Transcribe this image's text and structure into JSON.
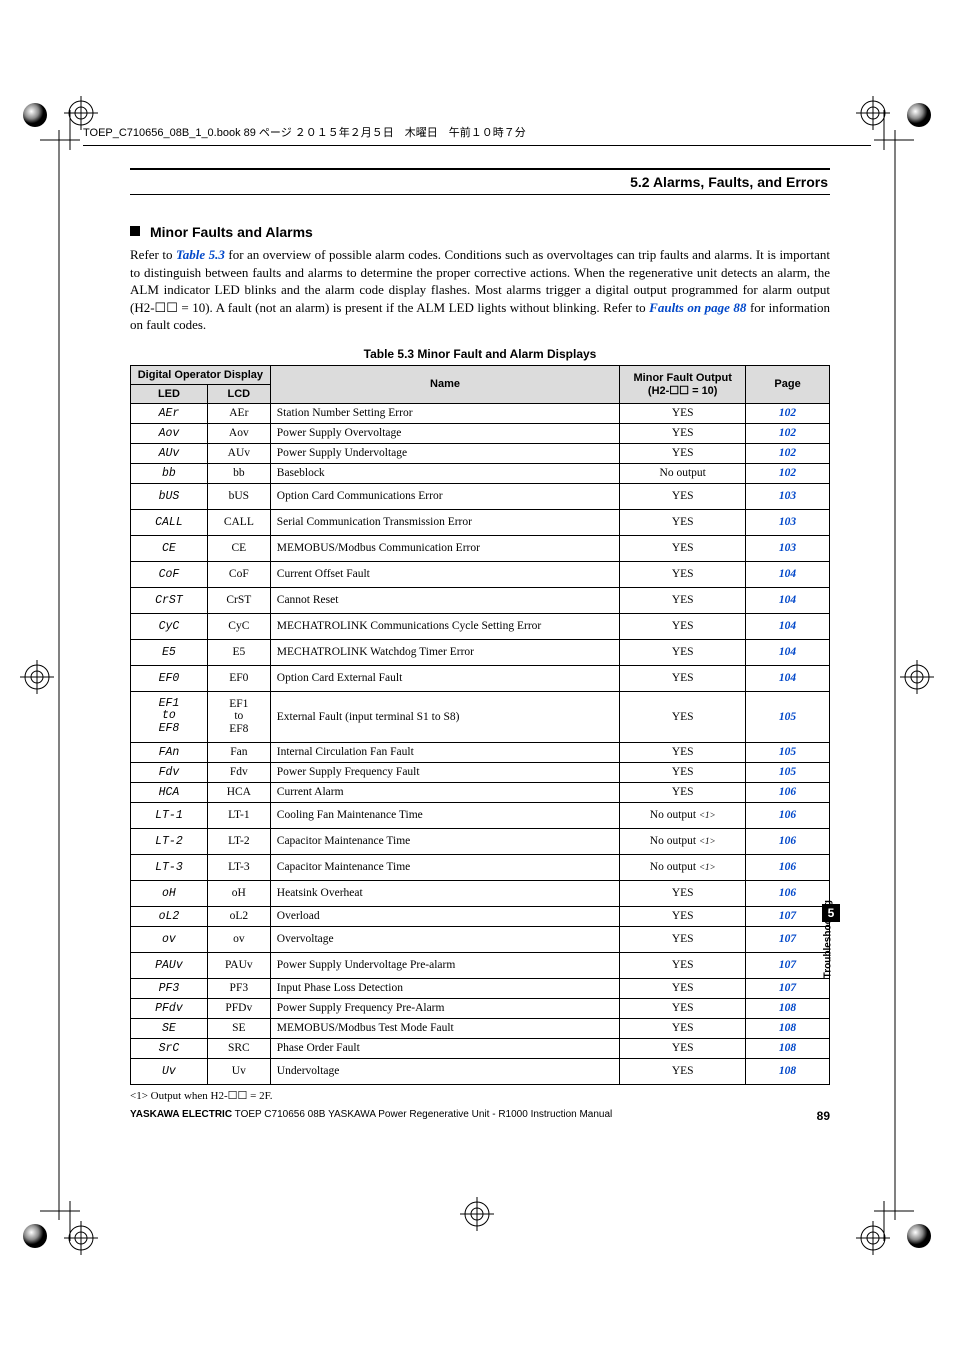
{
  "header_file_line": "TOEP_C710656_08B_1_0.book  89 ページ  ２０１５年２月５日　木曜日　午前１０時７分",
  "section_header": "5.2  Alarms, Faults, and Errors",
  "minor_title": "Minor Faults and Alarms",
  "intro_p1_a": "Refer to ",
  "intro_link1": "Table 5.3",
  "intro_p1_b": " for an overview of possible alarm codes. Conditions such as overvoltages can trip faults and alarms. It is important to distinguish between faults and alarms to determine the proper corrective actions. When the regenerative unit detects an alarm, the ALM indicator LED blinks and the alarm code display flashes. Most alarms trigger a digital output programmed for alarm output (H2-☐☐ = 10). A fault (not an alarm) is present if the ALM LED lights without blinking. Refer to ",
  "intro_link2": "Faults on page 88",
  "intro_p1_c": " for information on fault codes.",
  "table_caption": "Table 5.3  Minor Fault and Alarm Displays",
  "thead": {
    "dod": "Digital Operator Display",
    "led": "LED",
    "lcd": "LCD",
    "name": "Name",
    "out": "Minor Fault Output\n(H2-☐☐ = 10)",
    "page": "Page"
  },
  "rows": [
    {
      "led": "AEr",
      "lcd": "AEr",
      "name": "Station Number Setting Error",
      "out": "YES",
      "page": "102",
      "tall": false
    },
    {
      "led": "Aov",
      "lcd": "Aov",
      "name": "Power Supply Overvoltage",
      "out": "YES",
      "page": "102",
      "tall": false
    },
    {
      "led": "AUv",
      "lcd": "AUv",
      "name": "Power Supply Undervoltage",
      "out": "YES",
      "page": "102",
      "tall": false
    },
    {
      "led": "bb",
      "lcd": "bb",
      "name": "Baseblock",
      "out": "No output",
      "page": "102",
      "tall": false
    },
    {
      "led": "bUS",
      "lcd": "bUS",
      "name": "Option Card Communications Error",
      "out": "YES",
      "page": "103",
      "tall": true
    },
    {
      "led": "CALL",
      "lcd": "CALL",
      "name": "Serial Communication Transmission Error",
      "out": "YES",
      "page": "103",
      "tall": true
    },
    {
      "led": "CE",
      "lcd": "CE",
      "name": "MEMOBUS/Modbus Communication Error",
      "out": "YES",
      "page": "103",
      "tall": true
    },
    {
      "led": "CoF",
      "lcd": "CoF",
      "name": "Current Offset Fault",
      "out": "YES",
      "page": "104",
      "tall": true
    },
    {
      "led": "CrST",
      "lcd": "CrST",
      "name": "Cannot Reset",
      "out": "YES",
      "page": "104",
      "tall": true
    },
    {
      "led": "CyC",
      "lcd": "CyC",
      "name": "MECHATROLINK Communications Cycle Setting Error",
      "out": "YES",
      "page": "104",
      "tall": true
    },
    {
      "led": "E5",
      "lcd": "E5",
      "name": "MECHATROLINK Watchdog Timer Error",
      "out": "YES",
      "page": "104",
      "tall": true
    },
    {
      "led": "EF0",
      "lcd": "EF0",
      "name": "Option Card External Fault",
      "out": "YES",
      "page": "104",
      "tall": true
    },
    {
      "led": "EF1\nto\nEF8",
      "lcd": "EF1\nto\nEF8",
      "name": "External Fault (input terminal S1 to S8)",
      "out": "YES",
      "page": "105",
      "tall": true,
      "stack": true
    },
    {
      "led": "FAn",
      "lcd": "Fan",
      "name": "Internal Circulation Fan Fault",
      "out": "YES",
      "page": "105",
      "tall": false
    },
    {
      "led": "Fdv",
      "lcd": "Fdv",
      "name": "Power Supply Frequency Fault",
      "out": "YES",
      "page": "105",
      "tall": false
    },
    {
      "led": "HCA",
      "lcd": "HCA",
      "name": "Current Alarm",
      "out": "YES",
      "page": "106",
      "tall": false
    },
    {
      "led": "LT-1",
      "lcd": "LT-1",
      "name": "Cooling Fan Maintenance Time",
      "out": "No output",
      "page": "106",
      "note": true,
      "tall": true
    },
    {
      "led": "LT-2",
      "lcd": "LT-2",
      "name": "Capacitor Maintenance Time",
      "out": "No output",
      "page": "106",
      "note": true,
      "tall": true
    },
    {
      "led": "LT-3",
      "lcd": "LT-3",
      "name": "Capacitor Maintenance Time",
      "out": "No output",
      "page": "106",
      "note": true,
      "tall": true
    },
    {
      "led": "oH",
      "lcd": "oH",
      "name": "Heatsink Overheat",
      "out": "YES",
      "page": "106",
      "tall": true
    },
    {
      "led": "oL2",
      "lcd": "oL2",
      "name": "Overload",
      "out": "YES",
      "page": "107",
      "tall": false
    },
    {
      "led": "ov",
      "lcd": "ov",
      "name": "Overvoltage",
      "out": "YES",
      "page": "107",
      "tall": true
    },
    {
      "led": "PAUv",
      "lcd": "PAUv",
      "name": "Power Supply Undervoltage Pre-alarm",
      "out": "YES",
      "page": "107",
      "tall": true
    },
    {
      "led": "PF3",
      "lcd": "PF3",
      "name": "Input Phase Loss Detection",
      "out": "YES",
      "page": "107",
      "tall": false
    },
    {
      "led": "PFdv",
      "lcd": "PFDv",
      "name": "Power Supply Frequency Pre-Alarm",
      "out": "YES",
      "page": "108",
      "tall": false
    },
    {
      "led": "SE",
      "lcd": "SE",
      "name": "MEMOBUS/Modbus Test Mode Fault",
      "out": "YES",
      "page": "108",
      "tall": false
    },
    {
      "led": "SrC",
      "lcd": "SRC",
      "name": "Phase Order Fault",
      "out": "YES",
      "page": "108",
      "tall": false
    },
    {
      "led": "Uv",
      "lcd": "Uv",
      "name": "Undervoltage",
      "out": "YES",
      "page": "108",
      "tall": true
    }
  ],
  "footnote": "<1> Output when H2-☐☐ = 2F.",
  "footer_left_bold": "YASKAWA ELECTRIC",
  "footer_left_rest": " TOEP C710656 08B YASKAWA Power Regenerative Unit - R1000 Instruction Manual",
  "footer_page": "89",
  "side_label": "Troubleshooting",
  "side_num": "5",
  "marks": {
    "crosshair_color": "#000",
    "gradient_ball_stops": [
      "#fff",
      "#888",
      "#000"
    ]
  }
}
